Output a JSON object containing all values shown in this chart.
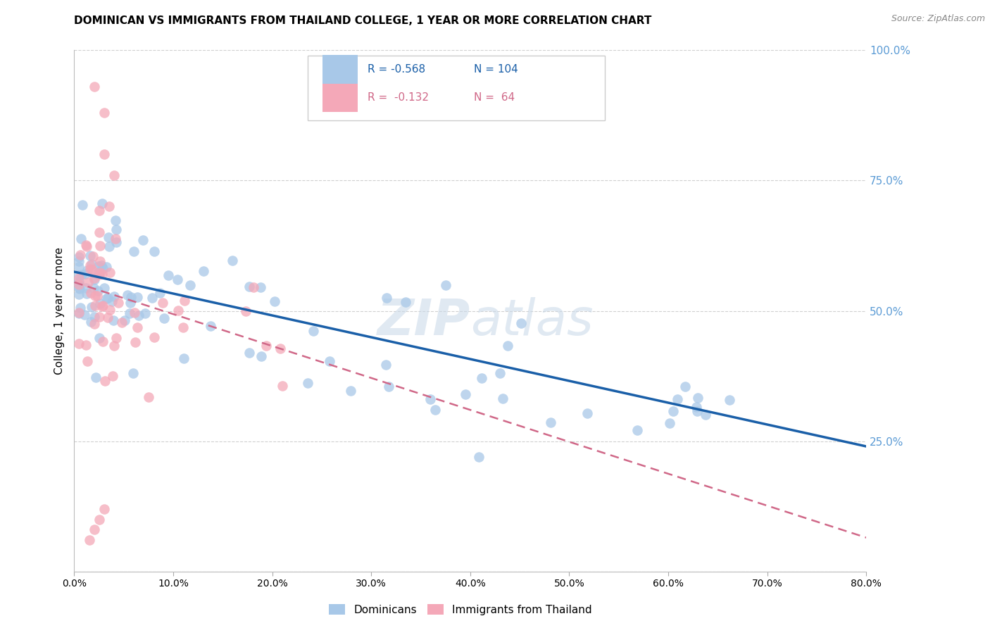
{
  "title": "DOMINICAN VS IMMIGRANTS FROM THAILAND COLLEGE, 1 YEAR OR MORE CORRELATION CHART",
  "source": "Source: ZipAtlas.com",
  "ylabel": "College, 1 year or more",
  "xlim": [
    0.0,
    0.8
  ],
  "ylim": [
    0.0,
    1.0
  ],
  "blue_R": -0.568,
  "blue_N": 104,
  "pink_R": -0.132,
  "pink_N": 64,
  "blue_color": "#A8C8E8",
  "pink_color": "#F4A8B8",
  "blue_line_color": "#1A5FA8",
  "pink_line_color": "#D06888",
  "watermark": "ZIPatlas",
  "legend_label_blue": "Dominicans",
  "legend_label_pink": "Immigrants from Thailand",
  "right_axis_color": "#5B9BD5",
  "grid_color": "#d0d0d0",
  "blue_line_x0": 0.0,
  "blue_line_y0": 0.575,
  "blue_line_x1": 0.8,
  "blue_line_y1": 0.24,
  "pink_line_x0": 0.0,
  "pink_line_y0": 0.555,
  "pink_line_x1": 0.8,
  "pink_line_y1": 0.065
}
